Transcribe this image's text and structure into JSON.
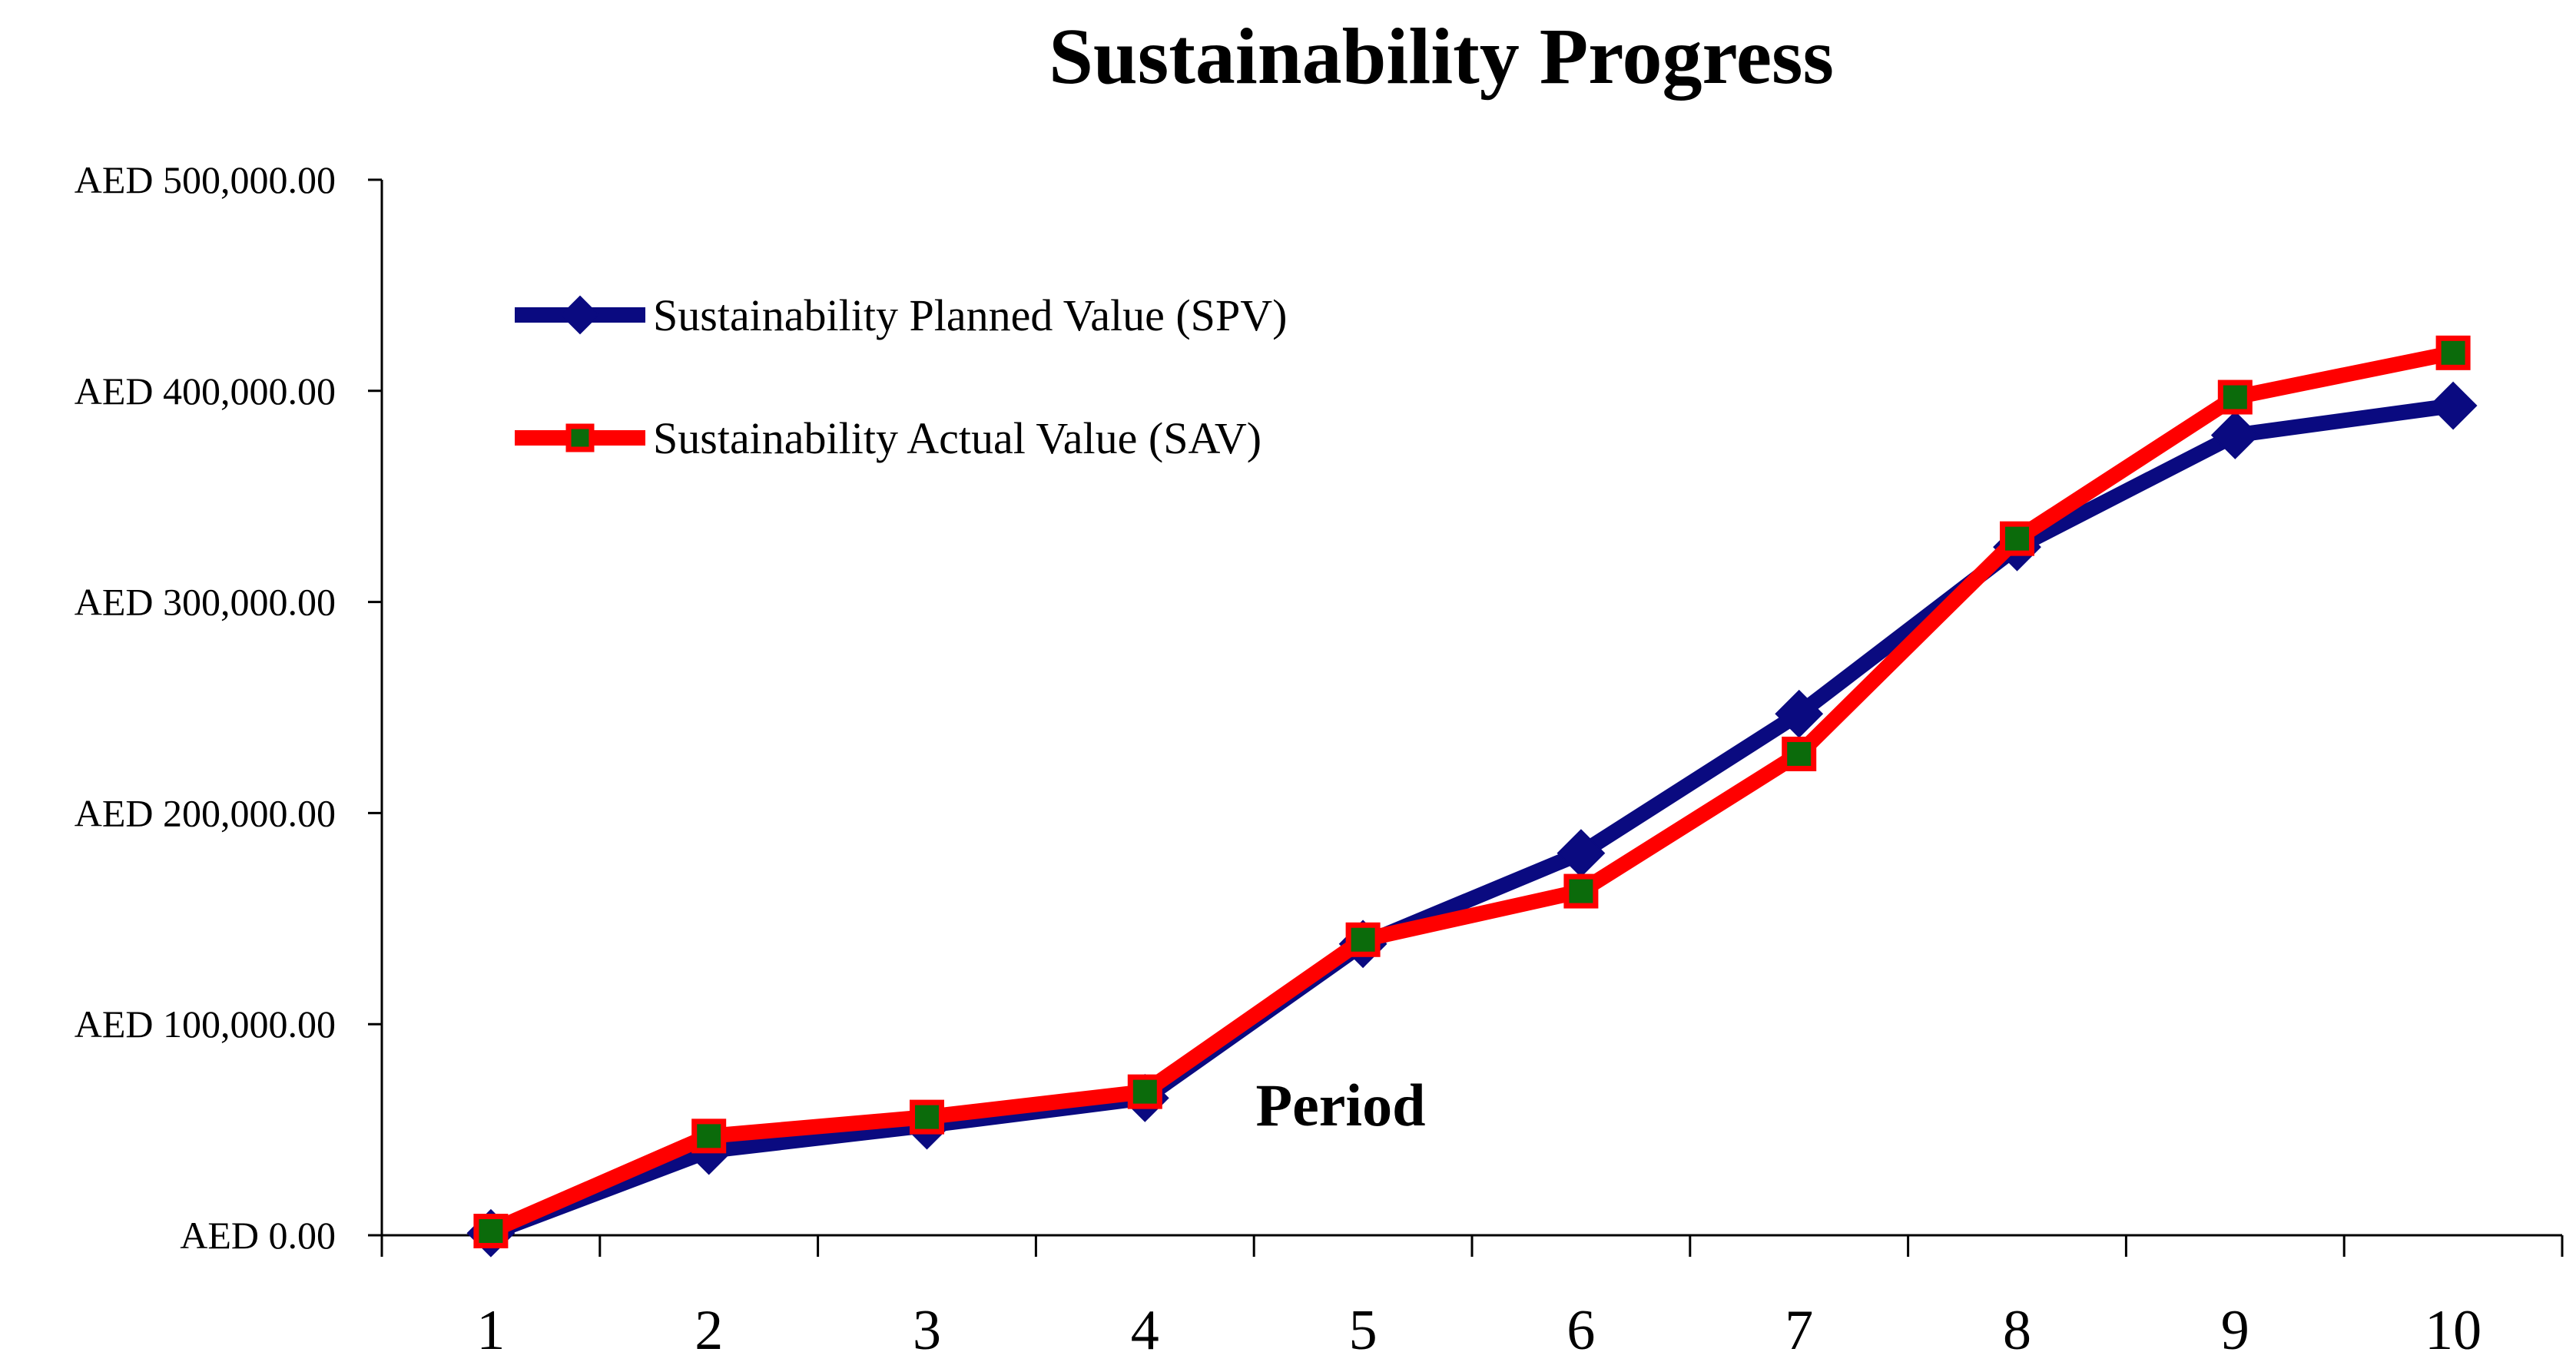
{
  "chart_data": {
    "type": "line",
    "title": "Sustainability Progress",
    "xlabel": "Period",
    "ylabel": "",
    "categories": [
      "1",
      "2",
      "3",
      "4",
      "5",
      "6",
      "7",
      "8",
      "9",
      "10"
    ],
    "ylim": [
      0,
      500000
    ],
    "yticks": [
      0,
      100000,
      200000,
      300000,
      400000,
      500000
    ],
    "ytick_labels": [
      "AED 0.00",
      "AED 100,000.00",
      "AED 200,000.00",
      "AED 300,000.00",
      "AED 400,000.00",
      "AED 500,000.00"
    ],
    "grid": false,
    "legend_position": "top-left",
    "series": [
      {
        "name": "Sustainability Planned Value (SPV)",
        "color": "#0a0a80",
        "marker": "diamond",
        "values": [
          1000,
          40000,
          52000,
          65000,
          138000,
          181000,
          247000,
          326000,
          379000,
          393000
        ]
      },
      {
        "name": "Sustainability Actual Value (SAV)",
        "color": "#ff0000",
        "marker_fill": "#0b6b0b",
        "marker": "square",
        "values": [
          2000,
          47000,
          56000,
          68000,
          140000,
          163000,
          228000,
          330000,
          397000,
          418000
        ]
      }
    ]
  }
}
